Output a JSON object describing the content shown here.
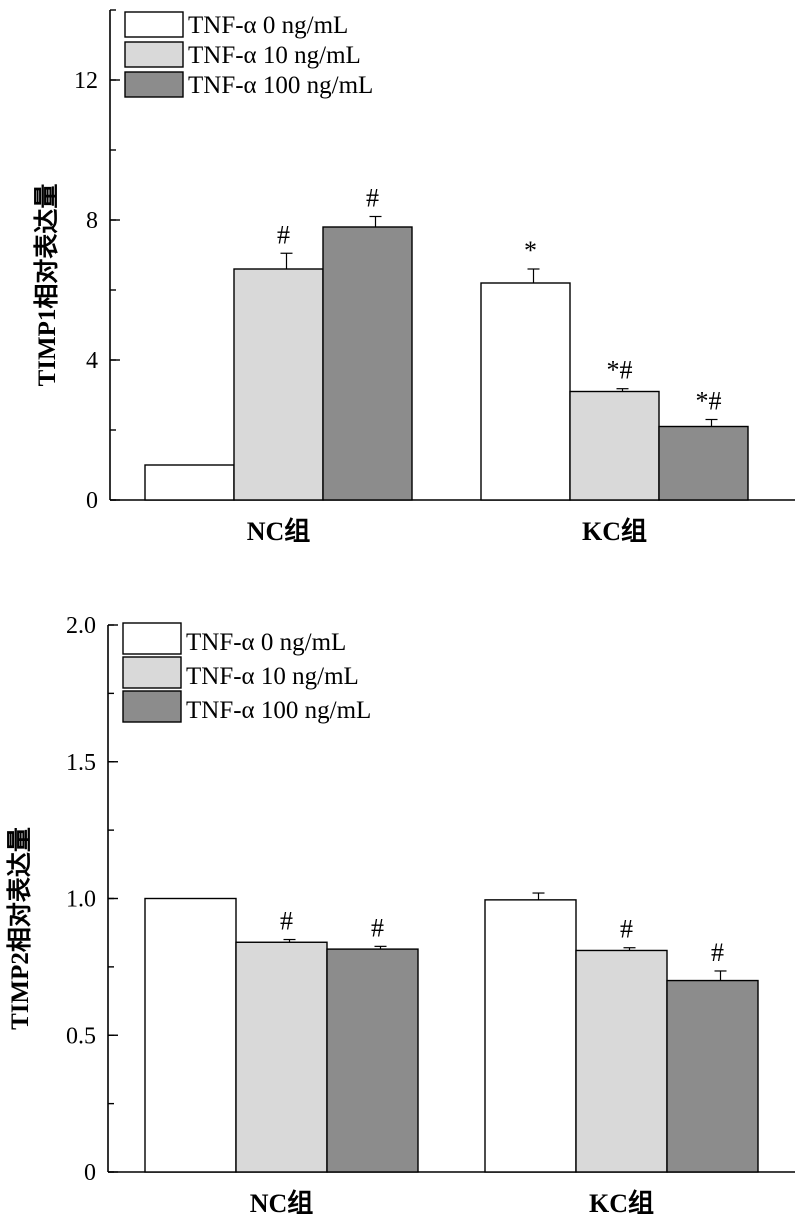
{
  "colors": {
    "TNF-α 0 ng/mL": "#ffffff",
    "TNF-α 10 ng/mL": "#d9d9d9",
    "TNF-α 100 ng/mL": "#8c8c8c"
  },
  "chart_data": [
    {
      "type": "bar",
      "ylabel": "TIMP1相对表达量",
      "ylim": [
        0,
        14
      ],
      "yticks": [
        "0",
        "4",
        "8",
        "12"
      ],
      "yticks_values": [
        0,
        4,
        8,
        12
      ],
      "ytick_minor_step": 2,
      "categories": [
        "NC组",
        "KC组"
      ],
      "legend_position": "top-left",
      "series": [
        {
          "name": "TNF-α 0 ng/mL",
          "values": [
            1.0,
            6.2
          ],
          "errors": [
            0,
            0.4
          ],
          "marks": [
            "",
            "*"
          ]
        },
        {
          "name": "TNF-α 10 ng/mL",
          "values": [
            6.6,
            3.1
          ],
          "errors": [
            0.45,
            0.08
          ],
          "marks": [
            "#",
            "*#"
          ]
        },
        {
          "name": "TNF-α 100 ng/mL",
          "values": [
            7.8,
            2.1
          ],
          "errors": [
            0.3,
            0.2
          ],
          "marks": [
            "#",
            "*#"
          ]
        }
      ]
    },
    {
      "type": "bar",
      "ylabel": "TIMP2相对表达量",
      "ylim": [
        0,
        2.0
      ],
      "yticks": [
        "0",
        "0.5",
        "1.0",
        "1.5",
        "2.0"
      ],
      "yticks_values": [
        0,
        0.5,
        1.0,
        1.5,
        2.0
      ],
      "ytick_minor_step": 0.25,
      "categories": [
        "NC组",
        "KC组"
      ],
      "legend_position": "top-left",
      "series": [
        {
          "name": "TNF-α 0 ng/mL",
          "values": [
            1.0,
            0.995
          ],
          "errors": [
            0,
            0.025
          ],
          "marks": [
            "",
            ""
          ]
        },
        {
          "name": "TNF-α 10 ng/mL",
          "values": [
            0.84,
            0.81
          ],
          "errors": [
            0.01,
            0.01
          ],
          "marks": [
            "#",
            "#"
          ]
        },
        {
          "name": "TNF-α 100 ng/mL",
          "values": [
            0.815,
            0.7
          ],
          "errors": [
            0.01,
            0.035
          ],
          "marks": [
            "#",
            "#"
          ]
        }
      ]
    }
  ]
}
